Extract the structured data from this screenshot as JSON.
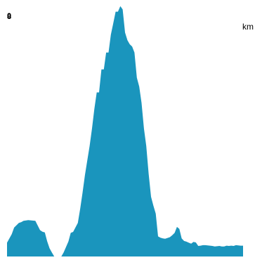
{
  "chart_data": {
    "type": "area",
    "title": "",
    "xlabel": "",
    "ylabel": "",
    "unit": "km",
    "y_tick_labels": [
      "0",
      "8"
    ],
    "fill_color": "#1a95bd",
    "grid": false,
    "legend": "none",
    "ylim": [
      0,
      100
    ],
    "x": [
      0,
      2,
      3,
      5,
      6,
      7,
      9,
      12,
      14,
      15,
      16,
      17,
      18,
      19,
      20,
      21,
      23,
      24,
      26,
      27,
      28,
      30,
      31,
      32,
      33,
      34,
      35,
      36,
      37,
      38,
      39,
      40,
      41,
      42,
      43,
      44,
      45,
      46,
      47,
      48,
      49,
      50,
      51,
      52,
      53,
      54,
      55,
      56,
      57,
      58,
      59,
      60,
      61,
      62,
      63,
      64,
      65,
      66,
      67,
      68,
      69,
      70,
      71,
      72,
      73,
      74,
      75,
      76,
      77,
      78,
      79,
      80,
      81,
      82,
      83,
      84,
      85,
      86,
      87,
      88,
      89,
      90,
      91,
      92,
      93,
      94,
      95,
      96,
      97,
      98,
      99,
      100
    ],
    "values": [
      5.5,
      8.9,
      11.5,
      13.4,
      13.7,
      14.2,
      14.5,
      14.2,
      10.5,
      9.9,
      9.6,
      6.1,
      3.3,
      1.6,
      0.0,
      0.0,
      0.0,
      1.6,
      6.0,
      9.4,
      9.8,
      13.4,
      19.1,
      25.4,
      32.4,
      38.2,
      44.1,
      51.1,
      58.8,
      65.4,
      65.4,
      74.6,
      74.6,
      81.3,
      81.3,
      88.4,
      92.9,
      97.6,
      97.6,
      99.8,
      98.5,
      89.3,
      86.2,
      84.6,
      83.7,
      81.3,
      71.3,
      67.7,
      61.2,
      51.0,
      44.1,
      33.0,
      23.8,
      20.3,
      17.1,
      8.0,
      7.5,
      7.2,
      7.1,
      7.4,
      7.7,
      8.5,
      9.4,
      11.8,
      11.0,
      7.2,
      6.2,
      5.9,
      5.5,
      5.1,
      5.8,
      5.6,
      4.2,
      4.3,
      4.5,
      4.5,
      4.4,
      4.3,
      4.2,
      4.0,
      4.1,
      4.2,
      4.0,
      4.0,
      4.3,
      4.2,
      4.3,
      4.2,
      4.5,
      4.4,
      4.3,
      4.3
    ]
  }
}
